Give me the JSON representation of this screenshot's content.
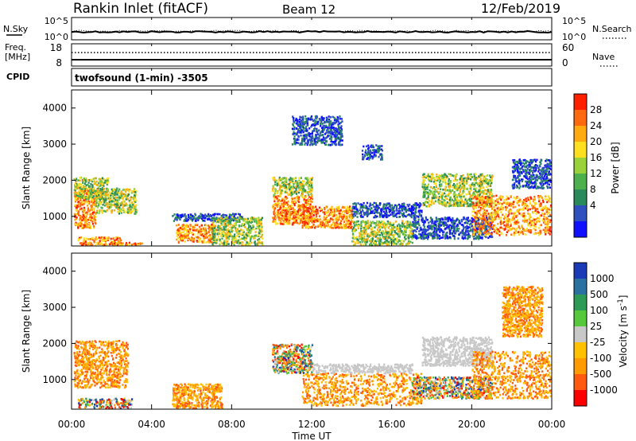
{
  "header": {
    "title": "Rankin Inlet (fitACF)",
    "beam": "Beam 12",
    "date": "12/Feb/2019"
  },
  "strip_nsky": {
    "left_label": "N.Sky",
    "left_ticks": [
      "10^5",
      "10^0"
    ],
    "right_label": "N.Search",
    "right_ticks": [
      "10^5",
      "10^0"
    ]
  },
  "strip_freq": {
    "left_label_1": "Freq.",
    "left_label_2": "[MHz]",
    "left_ticks": [
      "18",
      "8"
    ],
    "right_label": "Nave",
    "right_ticks": [
      "60",
      "0"
    ]
  },
  "cpid": {
    "label": "CPID",
    "text": "twofsound (1-min) -3505"
  },
  "x_axis": {
    "label": "Time UT",
    "ticks": [
      "00:00",
      "04:00",
      "08:00",
      "12:00",
      "16:00",
      "20:00",
      "00:00"
    ]
  },
  "chart_data": [
    {
      "type": "heatmap",
      "name": "power",
      "xlabel": "Time UT",
      "ylabel": "Slant Range [km]",
      "xlim": [
        0,
        24
      ],
      "ylim": [
        180,
        4500
      ],
      "yticks": [
        "1000",
        "2000",
        "3000",
        "4000"
      ],
      "colorbar": {
        "label": "Power [dB]",
        "ticks": [
          "4",
          "8",
          "12",
          "16",
          "20",
          "24",
          "28"
        ],
        "colors": [
          "#1010ff",
          "#3050c0",
          "#2a8a5a",
          "#4cb04c",
          "#9ad23c",
          "#ffe020",
          "#ffaa10",
          "#ff6a10",
          "#ff2000"
        ]
      },
      "regions": [
        {
          "t0": 0.1,
          "t1": 1.2,
          "r0": 700,
          "r1": 1750,
          "level": "high"
        },
        {
          "t0": 0.1,
          "t1": 1.8,
          "r0": 1500,
          "r1": 2100,
          "level": "mid"
        },
        {
          "t0": 1.2,
          "t1": 3.2,
          "r0": 1100,
          "r1": 1800,
          "level": "mid"
        },
        {
          "t0": 0.3,
          "t1": 2.5,
          "r0": 200,
          "r1": 450,
          "level": "high"
        },
        {
          "t0": 2.0,
          "t1": 3.5,
          "r0": 180,
          "r1": 300,
          "level": "high"
        },
        {
          "t0": 5.2,
          "t1": 7.2,
          "r0": 300,
          "r1": 800,
          "level": "high"
        },
        {
          "t0": 5.0,
          "t1": 8.5,
          "r0": 900,
          "r1": 1100,
          "level": "low"
        },
        {
          "t0": 7.0,
          "t1": 9.5,
          "r0": 200,
          "r1": 1000,
          "level": "mid"
        },
        {
          "t0": 10.0,
          "t1": 12.0,
          "r0": 800,
          "r1": 1600,
          "level": "high"
        },
        {
          "t0": 10.0,
          "t1": 12.0,
          "r0": 1600,
          "r1": 2100,
          "level": "mid"
        },
        {
          "t0": 11.5,
          "t1": 14.0,
          "r0": 700,
          "r1": 1300,
          "level": "high"
        },
        {
          "t0": 14.0,
          "t1": 17.0,
          "r0": 180,
          "r1": 900,
          "level": "mid"
        },
        {
          "t0": 14.0,
          "t1": 17.5,
          "r0": 1000,
          "r1": 1400,
          "level": "low"
        },
        {
          "t0": 17.5,
          "t1": 21.0,
          "r0": 1300,
          "r1": 2200,
          "level": "mid"
        },
        {
          "t0": 17.0,
          "t1": 21.0,
          "r0": 400,
          "r1": 1000,
          "level": "low"
        },
        {
          "t0": 20.0,
          "t1": 24.0,
          "r0": 500,
          "r1": 1600,
          "level": "high"
        },
        {
          "t0": 22.0,
          "t1": 24.0,
          "r0": 1800,
          "r1": 2600,
          "level": "low"
        },
        {
          "t0": 11.0,
          "t1": 13.5,
          "r0": 3000,
          "r1": 3800,
          "level": "low"
        },
        {
          "t0": 14.5,
          "t1": 15.5,
          "r0": 2600,
          "r1": 3000,
          "level": "low"
        }
      ]
    },
    {
      "type": "heatmap",
      "name": "velocity",
      "xlabel": "Time UT",
      "ylabel": "Slant Range [km]",
      "xlim": [
        0,
        24
      ],
      "ylim": [
        180,
        4500
      ],
      "yticks": [
        "1000",
        "2000",
        "3000",
        "4000"
      ],
      "colorbar": {
        "label": "Velocity [m s^-1]",
        "ticks": [
          "1000",
          "500",
          "100",
          "25",
          "-25",
          "-100",
          "-500",
          "-1000"
        ],
        "colors": [
          "#1a3ab8",
          "#2a70a0",
          "#2d9a55",
          "#56c83c",
          "#c8c8c8",
          "#ffc000",
          "#ff9a00",
          "#ff5a10",
          "#ff0000"
        ]
      },
      "regions": [
        {
          "t0": 0.1,
          "t1": 2.8,
          "r0": 800,
          "r1": 2100,
          "level": "neg"
        },
        {
          "t0": 0.3,
          "t1": 3.0,
          "r0": 200,
          "r1": 500,
          "level": "mix"
        },
        {
          "t0": 5.0,
          "t1": 7.5,
          "r0": 200,
          "r1": 900,
          "level": "neg"
        },
        {
          "t0": 10.0,
          "t1": 12.0,
          "r0": 1200,
          "r1": 2000,
          "level": "mix"
        },
        {
          "t0": 11.5,
          "t1": 17.5,
          "r0": 300,
          "r1": 1200,
          "level": "neg"
        },
        {
          "t0": 12.0,
          "t1": 17.0,
          "r0": 1200,
          "r1": 1450,
          "level": "zero"
        },
        {
          "t0": 17.5,
          "t1": 21.0,
          "r0": 1400,
          "r1": 2200,
          "level": "zero"
        },
        {
          "t0": 17.0,
          "t1": 21.0,
          "r0": 500,
          "r1": 1100,
          "level": "mix"
        },
        {
          "t0": 20.0,
          "t1": 24.0,
          "r0": 500,
          "r1": 1800,
          "level": "neg"
        },
        {
          "t0": 21.5,
          "t1": 23.5,
          "r0": 2200,
          "r1": 3600,
          "level": "neg"
        }
      ]
    }
  ]
}
